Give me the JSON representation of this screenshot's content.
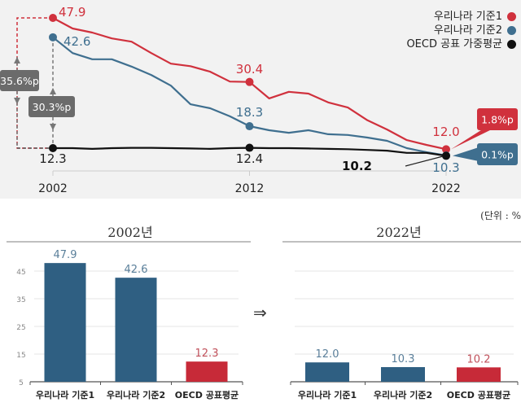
{
  "colors": {
    "red": "#d0313d",
    "blue": "#3f6f8f",
    "black": "#111111",
    "bar_blue": "#2f5f82",
    "bar_red": "#c72a38",
    "box_gray": "#6b6b6b"
  },
  "chart_data": [
    {
      "type": "line",
      "x": [
        2002,
        2003,
        2004,
        2005,
        2006,
        2007,
        2008,
        2009,
        2010,
        2011,
        2012,
        2013,
        2014,
        2015,
        2016,
        2017,
        2018,
        2019,
        2020,
        2021,
        2022
      ],
      "xticks": [
        "2002",
        "2012",
        "2022"
      ],
      "ylim": [
        10,
        48
      ],
      "series": [
        {
          "name": "우리나라 기준1",
          "color_key": "red",
          "values": [
            47.9,
            45.0,
            43.9,
            42.3,
            41.4,
            38.3,
            35.4,
            34.7,
            33.2,
            30.5,
            30.4,
            25.9,
            27.7,
            27.2,
            24.8,
            23.4,
            19.9,
            17.4,
            14.5,
            13.2,
            12.0
          ]
        },
        {
          "name": "우리나라 기준2",
          "color_key": "blue",
          "values": [
            42.6,
            38.3,
            36.6,
            36.6,
            34.6,
            32.3,
            29.4,
            24.3,
            23.2,
            21.0,
            18.3,
            17.2,
            16.5,
            17.2,
            16.1,
            15.9,
            15.2,
            14.3,
            12.3,
            11.2,
            10.3
          ]
        },
        {
          "name": "OECD 공표 가중평균",
          "color_key": "black",
          "values": [
            12.3,
            12.3,
            12.1,
            12.3,
            12.4,
            12.4,
            12.3,
            12.2,
            12.1,
            12.3,
            12.4,
            12.3,
            12.3,
            12.2,
            12.1,
            12.0,
            11.8,
            11.6,
            11.0,
            11.0,
            10.2
          ]
        }
      ],
      "labels": {
        "red_2002": "47.9",
        "blue_2002": "42.6",
        "black_2002": "12.3",
        "red_2012": "30.4",
        "blue_2012": "18.3",
        "black_2012": "12.4",
        "red_2022": "12.0",
        "blue_2022": "10.3",
        "black_2022": "10.2"
      },
      "annotations": {
        "gap1_2002": "35.6%p",
        "gap2_2002": "30.3%p",
        "gap1_2022": "1.8%p",
        "gap2_2022": "0.1%p"
      },
      "legend": [
        "우리나라 기준1",
        "우리나라 기준2",
        "OECD 공표 가중평균"
      ],
      "legend_position": "top-right"
    },
    {
      "type": "bar",
      "title": "2002년",
      "categories": [
        "우리나라 기준1",
        "우리나라 기준2",
        "OECD 공표평균"
      ],
      "values": [
        47.9,
        42.6,
        12.3
      ],
      "value_labels": [
        "47.9",
        "42.6",
        "12.3"
      ],
      "ylim": [
        5,
        50
      ],
      "yticks": [
        "5",
        "15",
        "25",
        "35",
        "45"
      ],
      "bar_colors": [
        "bar_blue",
        "bar_blue",
        "bar_red"
      ]
    },
    {
      "type": "bar",
      "title": "2022년",
      "categories": [
        "우리나라 기준1",
        "우리나라 기준2",
        "OECD 공표평균"
      ],
      "values": [
        12.0,
        10.3,
        10.2
      ],
      "value_labels": [
        "12.0",
        "10.3",
        "10.2"
      ],
      "ylim": [
        5,
        50
      ],
      "bar_colors": [
        "bar_blue",
        "bar_blue",
        "bar_red"
      ]
    }
  ],
  "unit_note": "(단위 : %",
  "arrow_symbol": "⇒"
}
